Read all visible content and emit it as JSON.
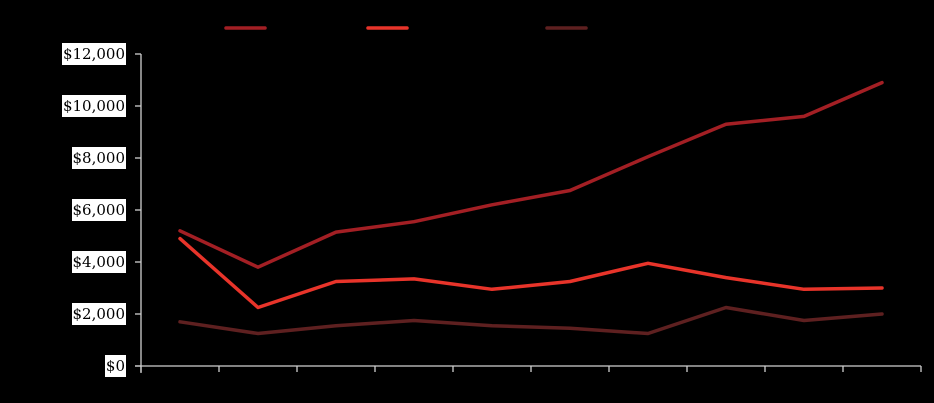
{
  "chart_data": {
    "type": "line",
    "title": "",
    "xlabel": "",
    "ylabel": "",
    "categories": [
      "",
      "",
      "",
      "",
      "",
      "",
      "",
      "",
      "",
      ""
    ],
    "ylim": [
      0,
      12000
    ],
    "yticks": [
      0,
      2000,
      4000,
      6000,
      8000,
      10000,
      12000
    ],
    "ytick_labels": [
      "$0",
      "$2,000",
      "$4,000",
      "$6,000",
      "$8,000",
      "$10,000",
      "$12,000"
    ],
    "grid": false,
    "legend_position": "top",
    "series": [
      {
        "name": "",
        "color": "#a31f24",
        "values": [
          5200,
          3800,
          5150,
          5550,
          6200,
          6750,
          8050,
          9300,
          9600,
          10900
        ]
      },
      {
        "name": "",
        "color": "#e8342a",
        "values": [
          4900,
          2250,
          3250,
          3350,
          2950,
          3250,
          3950,
          3400,
          2950,
          3000
        ]
      },
      {
        "name": "",
        "color": "#5e2020",
        "values": [
          1700,
          1250,
          1550,
          1750,
          1550,
          1450,
          1250,
          2250,
          1750,
          2000
        ]
      }
    ]
  },
  "colors": {
    "background": "#000000",
    "axis": "#d0d0d0",
    "label_bg": "#ffffff",
    "label_text": "#000000"
  }
}
